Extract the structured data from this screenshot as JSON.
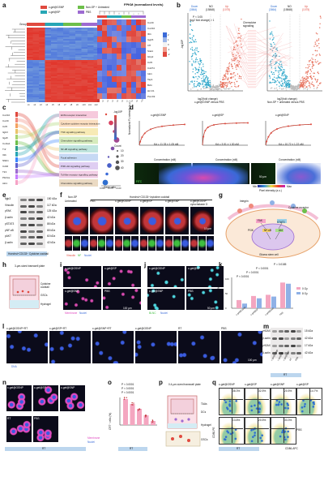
{
  "panels": {
    "a": {
      "letter": "a",
      "legend": [
        "c-gel@GSNP",
        "Non-SP + Untreated",
        "c-gel@SP",
        "PBS"
      ],
      "fpkm_title": "FPKM (normalized levels)",
      "group_label": "Group",
      "scale": [
        "-2",
        "-1",
        "0",
        "1",
        "2"
      ],
      "genes": [
        "Cxcl9",
        "Cxcl10",
        "Ifit1",
        "Isg15",
        "Irf7",
        "Stat1",
        "Gbp2",
        "Ccl5",
        "Cd274",
        "Ido1",
        "Tap1",
        "B2m",
        "H2-K1",
        "Psmb9"
      ]
    },
    "b": {
      "letter": "b",
      "left": {
        "title": "c-gel@GSNP versus PBS",
        "down": "Down",
        "down_n": "(3864)",
        "no": "NO",
        "no_n": "(15848)",
        "up": "Up",
        "up_n": "(1075)",
        "thr": "P < 0.05",
        "fc": "|log2 fold change| > 1"
      },
      "right": {
        "title": "Non-SP + untreated versus PBS",
        "down": "Down",
        "down_n": "(3864)",
        "no": "NO",
        "no_n": "(15848)",
        "up": "Up",
        "up_n": "(1075)"
      },
      "xlabel": "log2(fold change)",
      "ylabel": "-log10P",
      "mid_label": "Chemokine",
      "mid_label2": "signalling"
    },
    "c": {
      "letter": "c",
      "xlabel": "Gene ratio",
      "size_title": "-log10P",
      "count_title": "Count",
      "counts": [
        "10",
        "20",
        "30",
        "40"
      ],
      "terms": [
        "ECM-receptor interaction",
        "Cytokine-cytokine receptor interaction",
        "TNF signalling pathway",
        "Chemokine signalling pathway",
        "NF-kB signalling pathway",
        "Focal adhesion",
        "PI3K-Akt signalling pathway",
        "Toll-like receptor signalling pathway",
        "Chemokine signalling pathway"
      ],
      "genes": [
        "Cxcl10",
        "Cxcl9",
        "Ccl5",
        "Itgb3",
        "Itga5",
        "Col1a1",
        "Tnf",
        "Il1b",
        "Nfkb1",
        "Cd40",
        "Tlr4",
        "Pik3ca",
        "Akt1"
      ],
      "xticks": [
        "0.050",
        "0.075",
        "0.100"
      ]
    },
    "d": {
      "letter": "d",
      "ylabel": "Normalized FL intensity (a.u.)",
      "xlabel": "Concentration (nM)",
      "curves": [
        {
          "title": "c-gel@GSNP",
          "kd": "Kd = 11.33 ± 1.05 nM"
        },
        {
          "title": "c-gel@SP",
          "kd": "Kd = 3.51 ± 1.30 nM"
        },
        {
          "title": "c-gel@SNP",
          "kd": "Kd = 10.72 ± 1.22 nM"
        }
      ],
      "pixel_label": "Pixel intensity (a.u.)",
      "scale_min": "Min",
      "scale_max": "Max",
      "scalebar": "50 μm",
      "fitc": "FITC"
    },
    "e": {
      "letter": "e",
      "rows": [
        [
          "Itgb3",
          "150 kDa"
        ],
        [
          "Vinculin",
          "117 kDa"
        ],
        [
          "pFAK",
          "125 kDa"
        ],
        [
          "β-actin",
          "42 kDa"
        ],
        [
          "pSTAT3",
          "88 kDa"
        ],
        [
          "pNF-κB",
          "65 kDa"
        ],
        [
          "pAKT",
          "60 kDa"
        ],
        [
          "β-actin",
          "42 kDa"
        ]
      ],
      "footer": "Hoechst⁺CD133⁺ Cytokine cocktail"
    },
    "f": {
      "letter": "f",
      "header1": "Non-SP",
      "header2": "Hoechst⁺CD133⁺/cytokine cocktail",
      "cols": [
        "Untreated",
        "PBS",
        "c-gel@GSNP",
        "c-gel@SP",
        "c-gel@SNP",
        "c-gel@GSNP cytochalasin D"
      ],
      "legend": [
        "Vinculin",
        "NF",
        "Nuclei"
      ],
      "scalebar": "10 μm"
    },
    "g": {
      "letter": "g",
      "labels": [
        "Integrin",
        "FAK",
        "Cytokine receptor",
        "STAT3",
        "NF-κB",
        "Akt",
        "PI3K",
        "Glioma stem cell"
      ]
    },
    "h": {
      "letter": "h",
      "title": "3-μm-sized transwell plate",
      "labels": [
        "Cytokine cocktail",
        "GSCs",
        "Hydrogel"
      ]
    },
    "i": {
      "letter": "i",
      "tiles": [
        "c-gel@GSNP",
        "c-gel@SP",
        "c-gel@SNP",
        "PBS"
      ],
      "legend": [
        "Membrane",
        "Nuclei"
      ],
      "scalebar": "100 μm"
    },
    "j": {
      "letter": "j",
      "tiles": [
        "c-gel@GSNP",
        "c-gel@SP",
        "c-gel@SNP",
        "PBS"
      ],
      "legend": [
        "BLNC",
        "Nuclei"
      ],
      "scalebar": "50 μm"
    },
    "k": {
      "letter": "k",
      "ylabel": "Cell viability (%)",
      "legend": [
        "0 Gy",
        "8 Gy"
      ],
      "cats": [
        "c-gel@GSNP",
        "c-gel@SP",
        "c-gel@SNP",
        "PBS"
      ],
      "pvals": [
        "P < 0.0001",
        "P < 0.0001",
        "P < 0.0001",
        "P < 0.0001",
        "P = 0.0185"
      ],
      "yticks": [
        "0",
        "50",
        "100"
      ]
    },
    "l": {
      "letter": "l",
      "tiles": [
        "c-gel@GSNP+RT",
        "c-gel@SP+RT",
        "c-gel@SNP+RT",
        "c-gel@GSNP",
        "RT",
        "PBS"
      ],
      "legend": "DNA",
      "scalebar": "100 μm"
    },
    "m": {
      "letter": "m",
      "rows": [
        [
          "γH2AX",
          "15 kDa"
        ],
        [
          "β-actin",
          "42 kDa"
        ],
        [
          "γH2AX",
          "17 kDa"
        ],
        [
          "β-actin",
          "42 kDa"
        ]
      ],
      "cols": [
        "c-gel@GSNP",
        "c-gel@SP",
        "c-gel@SNP",
        "RT",
        "PBS"
      ],
      "footer": "RT"
    },
    "n": {
      "letter": "n",
      "tiles": [
        "c-gel@GSNP",
        "c-gel@SP",
        "c-gel@SNP",
        "RT",
        "PBS"
      ],
      "legend": [
        "Membrane",
        "Nuclei"
      ],
      "scalebar": "30 μm",
      "footer": "RT"
    },
    "o": {
      "letter": "o",
      "ylabel": "CRT⁺ cells (%)",
      "pvals": [
        "P < 0.0001",
        "P < 0.0001",
        "P < 0.0001"
      ],
      "cats": [
        "c-gel@GSNP",
        "c-gel@SP",
        "c-gel@SNP",
        "RT",
        "PBS"
      ],
      "footer": "RT"
    },
    "p": {
      "letter": "p",
      "title": "0.4-μm-sized transwell plate",
      "labels": [
        "TAAs",
        "DCs",
        "Hydrogel",
        "GSCs"
      ]
    },
    "q": {
      "letter": "q",
      "cols": [
        "c-gel@GSNP",
        "c-gel@SP",
        "c-gel@SNP",
        "c-gel@SP"
      ],
      "top_vals": [
        "38.3%",
        "32.5%",
        "20.5%",
        "14.7%"
      ],
      "bot_vals": [
        "13.8%",
        "20.5%",
        "33.3%"
      ],
      "row_labels": [
        "RT",
        "PBS"
      ],
      "xaxis": "CD86-APC",
      "yaxis": "CD80-PE"
    }
  },
  "colors": {
    "red": "#e04a3f",
    "blue": "#2f6fd0",
    "teal": "#27a6b5",
    "salmon": "#f08a7c",
    "pink": "#f6a3c7",
    "green": "#6dbf4a",
    "purple": "#9d6bd1",
    "bar_pink": "#f4a6c0",
    "bar_blue": "#8fb1e6"
  }
}
